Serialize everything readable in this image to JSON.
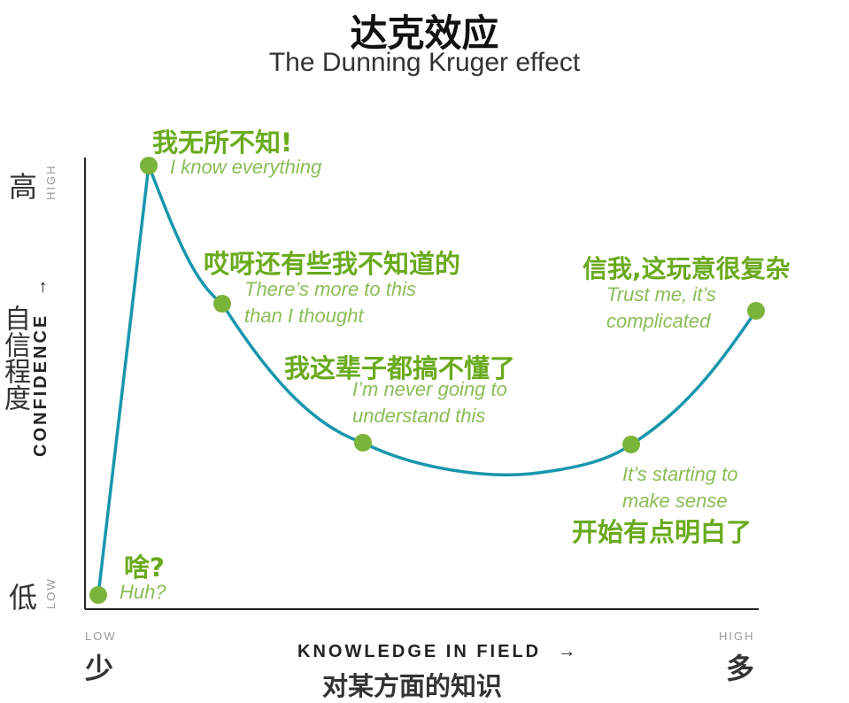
{
  "title": {
    "zh": "达克效应",
    "en": "The Dunning Kruger effect"
  },
  "y_axis": {
    "high_zh": "高",
    "high_en": "HIGH",
    "low_zh": "低",
    "low_en": "LOW",
    "label_en": "CONFIDENCE",
    "arrow": "→",
    "label_zh": "自信程度"
  },
  "x_axis": {
    "low_en": "LOW",
    "low_zh": "少",
    "high_en": "HIGH",
    "high_zh": "多",
    "label_en": "KNOWLEDGE IN FIELD",
    "arrow": "→",
    "label_zh": "对某方面的知识"
  },
  "stages": [
    {
      "zh": "啥?",
      "en": "Huh?"
    },
    {
      "zh": "我无所不知!",
      "en": "I know everything"
    },
    {
      "zh": "哎呀还有些我不知道的",
      "en": "There’s more to this\nthan I thought"
    },
    {
      "zh": "我这辈子都搞不懂了",
      "en": "I’m never going to\nunderstand this"
    },
    {
      "zh": "开始有点明白了",
      "en": "It’s starting to\nmake sense"
    },
    {
      "zh": "信我,这玩意很复杂",
      "en": "Trust me, it’s\ncomplicated"
    }
  ],
  "colors": {
    "curve": "#1796ad",
    "point": "#7ab43a",
    "label_zh": "#6aaa1d",
    "label_en": "#8cbc57",
    "axis": "#222222"
  }
}
